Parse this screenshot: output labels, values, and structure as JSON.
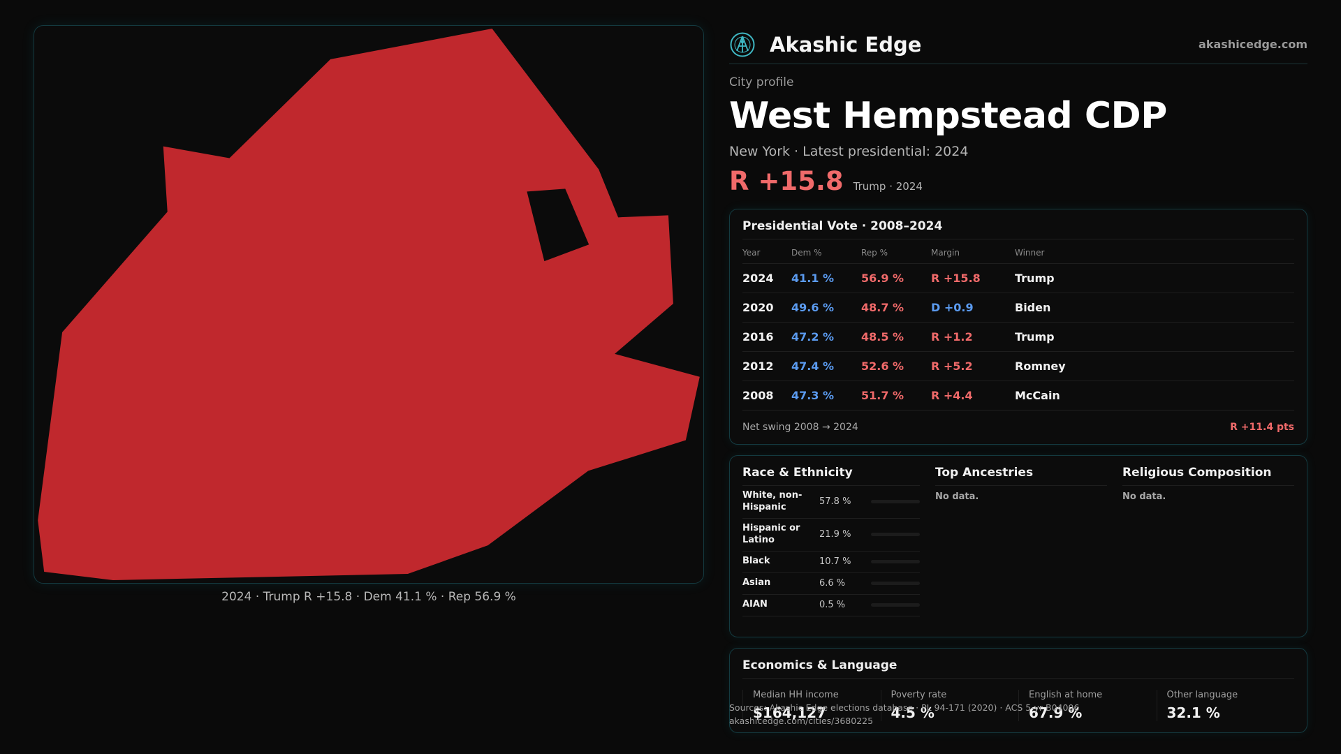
{
  "brand": {
    "name": "Akashic Edge",
    "url": "akashicedge.com"
  },
  "profile": {
    "kicker": "City profile",
    "title": "West Hempstead CDP",
    "subline": "New York  · Latest presidential: 2024",
    "margin_big": "R +15.8",
    "margin_note": "Trump · 2024"
  },
  "map": {
    "caption": "2024 · Trump R +15.8 · Dem 41.1 % · Rep 56.9 %",
    "fill_color": "#c0282d"
  },
  "vote": {
    "title": "Presidential Vote · 2008–2024",
    "headers": {
      "year": "Year",
      "dem": "Dem %",
      "rep": "Rep %",
      "margin": "Margin",
      "winner": "Winner"
    },
    "rows": [
      {
        "year": "2024",
        "dem": "41.1 %",
        "rep": "56.9 %",
        "margin": "R +15.8",
        "winner": "Trump"
      },
      {
        "year": "2020",
        "dem": "49.6 %",
        "rep": "48.7 %",
        "margin": "D +0.9",
        "winner": "Biden"
      },
      {
        "year": "2016",
        "dem": "47.2 %",
        "rep": "48.5 %",
        "margin": "R +1.2",
        "winner": "Trump"
      },
      {
        "year": "2012",
        "dem": "47.4 %",
        "rep": "52.6 %",
        "margin": "R +5.2",
        "winner": "Romney"
      },
      {
        "year": "2008",
        "dem": "47.3 %",
        "rep": "51.7 %",
        "margin": "R +4.4",
        "winner": "McCain"
      }
    ],
    "swing_label": "Net swing 2008 → 2024",
    "swing_value": "R +11.4 pts"
  },
  "race": {
    "title": "Race & Ethnicity",
    "rows": [
      {
        "name": "White, non-Hispanic",
        "pct": "57.8 %",
        "share": 0.578,
        "color": "#8a8f99"
      },
      {
        "name": "Hispanic or Latino",
        "pct": "21.9 %",
        "share": 0.219,
        "color": "#e0a030"
      },
      {
        "name": "Black",
        "pct": "10.7 %",
        "share": 0.107,
        "color": "#8a7ae0"
      },
      {
        "name": "Asian",
        "pct": "6.6 %",
        "share": 0.066,
        "color": "#2fbf7a"
      },
      {
        "name": "AIAN",
        "pct": "0.5 %",
        "share": 0.005,
        "color": "#e05a6a"
      }
    ]
  },
  "ancestries": {
    "title": "Top Ancestries",
    "empty": "No data."
  },
  "religion": {
    "title": "Religious Composition",
    "empty": "No data."
  },
  "econ": {
    "title": "Economics & Language",
    "items": [
      {
        "label": "Median HH income",
        "value": "$164,127"
      },
      {
        "label": "Poverty rate",
        "value": "4.5 %"
      },
      {
        "label": "English at home",
        "value": "67.9 %"
      },
      {
        "label": "Other language",
        "value": "32.1 %"
      }
    ]
  },
  "footer": {
    "sources": "Sources: Akashic Edge elections database · PL 94-171 (2020) · ACS 5-yr B04006",
    "link": "akashicedge.com/cities/3680225"
  }
}
